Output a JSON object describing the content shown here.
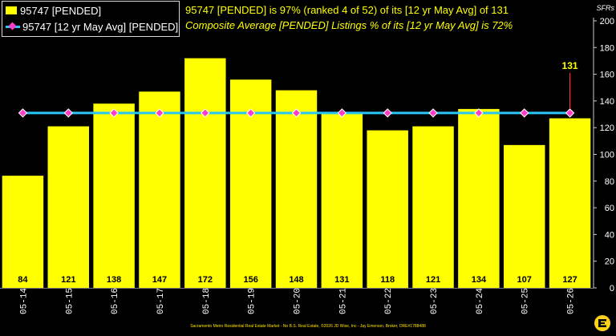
{
  "headline": "95747 [PENDED] is 97% (ranked 4 of 52) of its [12 yr May Avg] of 131",
  "subline": "Composite Average [PENDED] Listings % of its [12 yr May Avg] is 72%",
  "footer": "Sacramento Metro Residential Real Estate Market - No B.S. Real Estate, ©2026 JD Wise, Inc - Jay Emerson, Broker, DRE#1788488",
  "colors": {
    "bar": "#ffff00",
    "line": "#29c5f6",
    "marker": "#ff3ec8",
    "callout": "#ff3030",
    "axis_text": "#ffffff",
    "background": "#000000"
  },
  "chart_data": {
    "type": "bar",
    "categories": [
      "05-14",
      "05-15",
      "05-16",
      "05-17",
      "05-18",
      "05-19",
      "05-20",
      "05-21",
      "05-22",
      "05-23",
      "05-24",
      "05-25",
      "05-26"
    ],
    "series": [
      {
        "name": "95747 [PENDED]",
        "type": "bar",
        "values": [
          84,
          121,
          138,
          147,
          172,
          156,
          148,
          131,
          118,
          121,
          134,
          107,
          127
        ]
      },
      {
        "name": "95747 [12 yr May Avg] [PENDED]",
        "type": "line",
        "values": [
          131,
          131,
          131,
          131,
          131,
          131,
          131,
          131,
          131,
          131,
          131,
          131,
          131
        ]
      }
    ],
    "data_labels": [
      "84",
      "121",
      "138",
      "147",
      "172",
      "156",
      "148",
      "131",
      "118",
      "121",
      "134",
      "107",
      "127"
    ],
    "callout": "131",
    "ylabel": "SFRs",
    "ylim": [
      0,
      200
    ],
    "yticks": [
      0,
      20,
      40,
      60,
      80,
      100,
      120,
      140,
      160,
      180,
      200
    ],
    "y_axis_side": "right",
    "grid": false,
    "legend_position": "top-left"
  }
}
